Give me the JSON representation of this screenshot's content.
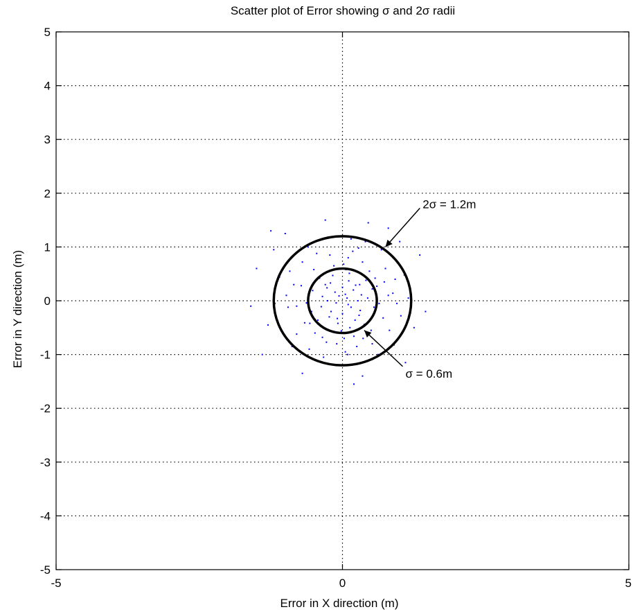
{
  "chart_data": {
    "type": "scatter",
    "title": "Scatter plot of Error showing σ and 2σ radii",
    "xlabel": "Error in X direction (m)",
    "ylabel": "Error in Y direction (m)",
    "xlim": [
      -5,
      5
    ],
    "ylim": [
      -5,
      5
    ],
    "x_ticks": [
      {
        "value": -5,
        "label": "-5"
      },
      {
        "value": 0,
        "label": "0"
      },
      {
        "value": 5,
        "label": "5"
      }
    ],
    "y_ticks": [
      {
        "value": 5,
        "label": "5"
      },
      {
        "value": 4,
        "label": "4"
      },
      {
        "value": 3,
        "label": "3"
      },
      {
        "value": 2,
        "label": "2"
      },
      {
        "value": 1,
        "label": "1"
      },
      {
        "value": 0,
        "label": "0"
      },
      {
        "value": -1,
        "label": "-1"
      },
      {
        "value": -2,
        "label": "-2"
      },
      {
        "value": -3,
        "label": "-3"
      },
      {
        "value": -4,
        "label": "-4"
      },
      {
        "value": -5,
        "label": "-5"
      }
    ],
    "grid": true,
    "grid_style": "dotted",
    "point_color": "#0000ff",
    "circles": [
      {
        "label": "σ = 0.6m",
        "radius": 0.6,
        "center": [
          0,
          0
        ],
        "color": "#000000"
      },
      {
        "label": "2σ = 1.2m",
        "radius": 1.2,
        "center": [
          0,
          0
        ],
        "color": "#000000"
      }
    ],
    "annotations": [
      {
        "text": "2σ = 1.2m",
        "x": 1.4,
        "y": 1.8,
        "arrow_to": [
          0.75,
          1.0
        ]
      },
      {
        "text": "σ = 0.6m",
        "x": 1.1,
        "y": -1.35,
        "arrow_to": [
          0.38,
          -0.55
        ]
      }
    ],
    "points": [
      [
        0.05,
        0.12
      ],
      [
        -0.21,
        0.33
      ],
      [
        0.31,
        -0.18
      ],
      [
        -0.08,
        -0.42
      ],
      [
        0.44,
        0.05
      ],
      [
        -0.37,
        -0.11
      ],
      [
        0.12,
        0.51
      ],
      [
        0.22,
        -0.36
      ],
      [
        -0.52,
        0.19
      ],
      [
        0.6,
        0.27
      ],
      [
        -0.15,
        0.65
      ],
      [
        0.03,
        -0.7
      ],
      [
        0.71,
        -0.32
      ],
      [
        -0.66,
        -0.41
      ],
      [
        0.35,
        0.72
      ],
      [
        -0.28,
        -0.77
      ],
      [
        0.88,
        0.14
      ],
      [
        -0.85,
        0.3
      ],
      [
        0.18,
        0.92
      ],
      [
        -0.45,
        0.88
      ],
      [
        0.52,
        -0.8
      ],
      [
        -0.95,
        -0.12
      ],
      [
        1.02,
        -0.28
      ],
      [
        0.09,
        -1.0
      ],
      [
        -0.7,
        0.72
      ],
      [
        0.75,
        0.6
      ],
      [
        -0.33,
        -1.05
      ],
      [
        0.4,
        1.1
      ],
      [
        -1.1,
        0.44
      ],
      [
        1.08,
        0.48
      ],
      [
        -0.58,
        -0.9
      ],
      [
        0.62,
        -1.0
      ],
      [
        0.0,
        0.25
      ],
      [
        0.27,
        0.0
      ],
      [
        -0.26,
        0.0
      ],
      [
        0.0,
        -0.24
      ],
      [
        0.15,
        -0.12
      ],
      [
        -0.13,
        0.16
      ],
      [
        0.19,
        0.2
      ],
      [
        -0.2,
        -0.2
      ],
      [
        0.41,
        0.38
      ],
      [
        -0.4,
        0.42
      ],
      [
        0.38,
        -0.44
      ],
      [
        -0.43,
        -0.36
      ],
      [
        0.11,
        0.37
      ],
      [
        -0.09,
        -0.33
      ],
      [
        0.33,
        0.11
      ],
      [
        -0.35,
        0.08
      ],
      [
        0.55,
        -0.12
      ],
      [
        -0.54,
        -0.2
      ],
      [
        0.06,
        0.58
      ],
      [
        -0.02,
        -0.56
      ],
      [
        0.47,
        0.55
      ],
      [
        -0.5,
        0.58
      ],
      [
        0.5,
        -0.55
      ],
      [
        -0.48,
        -0.6
      ],
      [
        0.82,
        -0.55
      ],
      [
        -0.8,
        -0.62
      ],
      [
        0.25,
        -0.85
      ],
      [
        -0.22,
        0.85
      ],
      [
        0.92,
        0.4
      ],
      [
        -0.92,
        0.55
      ],
      [
        0.15,
        1.15
      ],
      [
        -0.12,
        -1.2
      ],
      [
        1.15,
        0.05
      ],
      [
        -1.18,
        -0.05
      ],
      [
        0.68,
        0.95
      ],
      [
        -0.6,
        1.0
      ],
      [
        0.9,
        -0.82
      ],
      [
        -0.88,
        -0.85
      ],
      [
        1.25,
        -0.5
      ],
      [
        -1.3,
        -0.45
      ],
      [
        -1.25,
        1.3
      ],
      [
        -1.0,
        1.25
      ],
      [
        1.0,
        1.1
      ],
      [
        0.8,
        1.35
      ],
      [
        -1.5,
        0.6
      ],
      [
        -1.6,
        -0.1
      ],
      [
        1.35,
        0.85
      ],
      [
        -1.4,
        -1.0
      ],
      [
        0.45,
        1.45
      ],
      [
        -0.3,
        1.5
      ],
      [
        0.35,
        -1.4
      ],
      [
        -0.7,
        -1.35
      ],
      [
        1.1,
        -1.15
      ],
      [
        1.45,
        -0.2
      ],
      [
        -1.2,
        0.95
      ],
      [
        0.2,
        -1.55
      ],
      [
        0.08,
        0.05
      ],
      [
        -0.06,
        0.09
      ],
      [
        0.1,
        -0.07
      ],
      [
        -0.11,
        -0.04
      ],
      [
        0.23,
        0.29
      ],
      [
        -0.27,
        0.24
      ],
      [
        0.29,
        -0.27
      ],
      [
        -0.23,
        -0.3
      ],
      [
        0.52,
        0.22
      ],
      [
        -0.58,
        0.1
      ],
      [
        0.13,
        -0.5
      ],
      [
        -0.17,
        0.47
      ],
      [
        0.64,
        -0.05
      ],
      [
        -0.63,
        -0.04
      ],
      [
        0.02,
        0.68
      ],
      [
        0.2,
        -0.66
      ],
      [
        0.73,
        0.35
      ],
      [
        -0.72,
        0.28
      ],
      [
        0.36,
        -0.7
      ],
      [
        -0.35,
        -0.68
      ],
      [
        0.95,
        -0.05
      ],
      [
        -0.98,
        0.1
      ],
      [
        0.05,
        -0.95
      ],
      [
        0.28,
        0.98
      ],
      [
        -0.3,
        0.3
      ],
      [
        0.3,
        0.3
      ],
      [
        0.1,
        0.8
      ],
      [
        -0.1,
        -0.8
      ],
      [
        0.8,
        0.1
      ],
      [
        -0.8,
        -0.1
      ],
      [
        0.57,
        0.42
      ],
      [
        -0.57,
        -0.42
      ]
    ]
  }
}
